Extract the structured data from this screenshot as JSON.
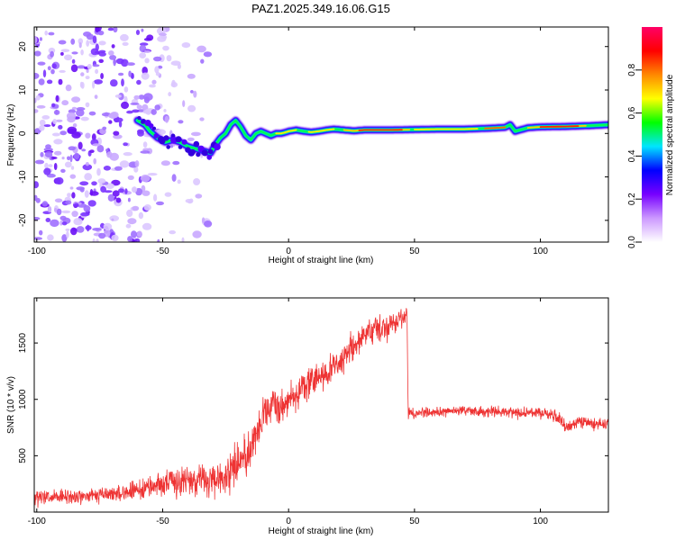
{
  "figure_title": "PAZ1.2025.349.16.06.G15",
  "chart_data": [
    {
      "type": "heatmap",
      "title": "PAZ1.2025.349.16.06.G15",
      "xlabel": "Height of straight line (km)",
      "ylabel": "Frequency (Hz)",
      "xlim": [
        -101,
        127
      ],
      "ylim": [
        -25,
        24.5
      ],
      "xticks": [
        "-100",
        "-50",
        "0",
        "50",
        "100"
      ],
      "xtick_values": [
        -100,
        -50,
        0,
        50,
        100
      ],
      "yticks": [
        "-20",
        "-10",
        "0",
        "10",
        "20"
      ],
      "ytick_values": [
        -20,
        -10,
        0,
        10,
        20
      ],
      "noise_region_km": [
        -101,
        -32
      ],
      "ridge": {
        "description": "Dominant frequency ridge of the spectrogram",
        "x": [
          -60,
          -57,
          -55,
          -52,
          -49,
          -46,
          -43,
          -40,
          -37,
          -34,
          -31,
          -29,
          -27,
          -25,
          -23,
          -21,
          -19,
          -17,
          -15,
          -13,
          -11,
          -9,
          -7,
          -5,
          -3,
          -1,
          0,
          3,
          6,
          9,
          12,
          15,
          18,
          22,
          26,
          30,
          40,
          50,
          60,
          70,
          80,
          86,
          88,
          90,
          95,
          100,
          110,
          120,
          127
        ],
        "y": [
          3,
          2,
          0.5,
          -1,
          -2,
          -1.5,
          -2,
          -3,
          -3.5,
          -4,
          -4.5,
          -2.5,
          -1,
          0,
          2,
          3,
          1.5,
          -0.5,
          -1.5,
          0,
          0.5,
          0,
          -0.5,
          0,
          0,
          0.3,
          0.5,
          0.8,
          0.5,
          0.3,
          0.5,
          0.8,
          1,
          0.8,
          0.6,
          0.8,
          0.8,
          0.9,
          1,
          1,
          1.2,
          1.4,
          2,
          0.5,
          1.3,
          1.5,
          1.6,
          1.8,
          2
        ]
      },
      "colorbar": {
        "label": "Normalized spectral amplitude",
        "range": [
          0,
          1
        ],
        "ticks": [
          "0.0",
          "0.2",
          "0.4",
          "0.6",
          "0.8"
        ],
        "tick_values": [
          0,
          0.2,
          0.4,
          0.6,
          0.8
        ],
        "colors": [
          "#ffffff",
          "#cc99ff",
          "#7700ff",
          "#0000ff",
          "#00e5ff",
          "#00ff00",
          "#ffff00",
          "#ff8800",
          "#ff0000",
          "#ff0066"
        ]
      }
    },
    {
      "type": "line",
      "title": "",
      "xlabel": "Height of straight line (km)",
      "ylabel": "SNR (10 * v/v)",
      "xlim": [
        -101,
        127
      ],
      "ylim": [
        0,
        1900
      ],
      "xticks": [
        "-100",
        "-50",
        "0",
        "50",
        "100"
      ],
      "xtick_values": [
        -100,
        -50,
        0,
        50,
        100
      ],
      "yticks": [
        "500",
        "1000",
        "1500"
      ],
      "ytick_values": [
        500,
        1000,
        1500
      ],
      "line_color": "#ee3333",
      "series": [
        {
          "name": "SNR",
          "description": "Mean trend of the noisy SNR trace (high-frequency fluctuation overlaid)",
          "x": [
            -101,
            -90,
            -80,
            -70,
            -60,
            -50,
            -45,
            -40,
            -35,
            -30,
            -25,
            -20,
            -15,
            -10,
            -5,
            0,
            5,
            10,
            15,
            20,
            25,
            30,
            35,
            40,
            45,
            47,
            47.5,
            50,
            60,
            70,
            80,
            90,
            100,
            105,
            110,
            115,
            120,
            127
          ],
          "y": [
            120,
            130,
            140,
            160,
            190,
            260,
            260,
            280,
            300,
            250,
            330,
            450,
            560,
            860,
            940,
            990,
            1090,
            1160,
            1250,
            1310,
            1460,
            1550,
            1600,
            1680,
            1720,
            1760,
            880,
            880,
            890,
            900,
            890,
            880,
            880,
            870,
            760,
            800,
            790,
            780
          ],
          "noise_amplitude": [
            80,
            70,
            70,
            75,
            80,
            110,
            130,
            140,
            160,
            150,
            170,
            190,
            200,
            170,
            160,
            150,
            150,
            150,
            150,
            150,
            150,
            140,
            140,
            130,
            110,
            100,
            50,
            50,
            50,
            50,
            50,
            50,
            50,
            60,
            70,
            60,
            60,
            60
          ]
        }
      ]
    }
  ]
}
